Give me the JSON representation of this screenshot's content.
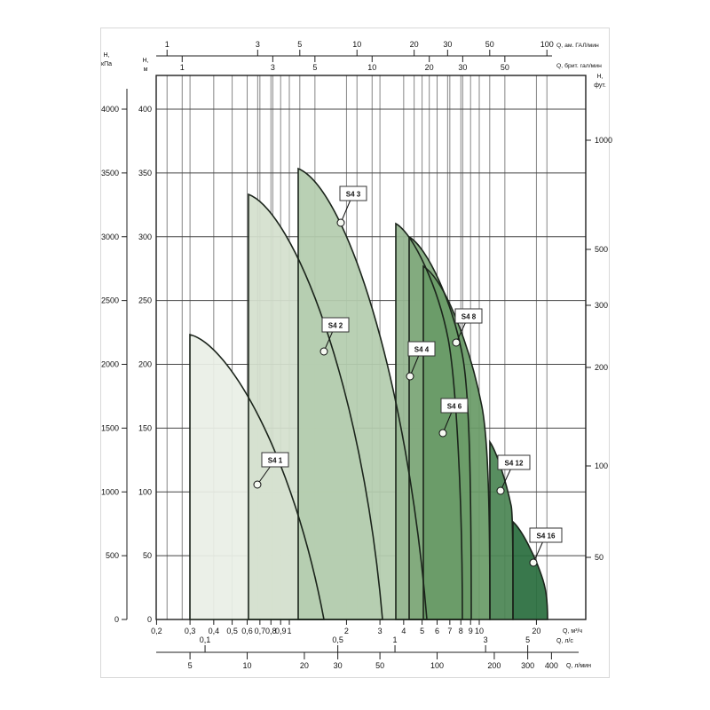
{
  "page": {
    "background": "#ffffff",
    "card_border": "#d8d8d8"
  },
  "chart_data": {
    "type": "area",
    "title": "",
    "legend_position": "inline-labels",
    "grid": true,
    "x_scale": "log",
    "y_scale": "linear",
    "axes": {
      "top_us_gpm": {
        "caption": "Q, ам. ГАЛ/мин",
        "labels": [
          "1",
          "3",
          "5",
          "10",
          "20",
          "30",
          "50",
          "100"
        ],
        "values": [
          1,
          3,
          5,
          10,
          20,
          30,
          50,
          100
        ]
      },
      "top_imp_gpm": {
        "caption": "Q, брит. гал/мин",
        "labels": [
          "1",
          "3",
          "5",
          "10",
          "20",
          "30",
          "50"
        ],
        "values": [
          1,
          3,
          5,
          10,
          20,
          30,
          50
        ]
      },
      "bottom_m3h": {
        "caption": "Q, м³/ч",
        "labels": [
          "0,2",
          "0,3",
          "0,4",
          "0,5",
          "0,6",
          "0,7",
          "0,8",
          "0,9",
          "1",
          "2",
          "3",
          "4",
          "5",
          "6",
          "7",
          "8",
          "9",
          "10",
          "20"
        ],
        "values": [
          0.2,
          0.3,
          0.4,
          0.5,
          0.6,
          0.7,
          0.8,
          0.9,
          1,
          2,
          3,
          4,
          5,
          6,
          7,
          8,
          9,
          10,
          20
        ]
      },
      "bottom_ls": {
        "caption": "Q, л/с",
        "labels": [
          "0,1",
          "0,5",
          "1",
          "3",
          "5"
        ],
        "values": [
          0.1,
          0.5,
          1,
          3,
          5
        ]
      },
      "bottom_lmin": {
        "caption": "Q, л/мин",
        "labels": [
          "5",
          "10",
          "20",
          "30",
          "50",
          "100",
          "200",
          "300",
          "400"
        ],
        "values": [
          5,
          10,
          20,
          30,
          50,
          100,
          200,
          300,
          400
        ]
      },
      "left_kpa": {
        "caption_line1": "H,",
        "caption_line2": "кПа",
        "labels": [
          "0",
          "500",
          "1000",
          "1500",
          "2000",
          "2500",
          "3000",
          "3500",
          "4000"
        ],
        "values": [
          0,
          500,
          1000,
          1500,
          2000,
          2500,
          3000,
          3500,
          4000
        ]
      },
      "left_m": {
        "caption_line1": "H,",
        "caption_line2": "м",
        "labels": [
          "0",
          "50",
          "100",
          "150",
          "200",
          "250",
          "300",
          "350",
          "400"
        ],
        "values": [
          0,
          50,
          100,
          150,
          200,
          250,
          300,
          350,
          400
        ]
      },
      "right_ft": {
        "caption_line1": "H,",
        "caption_line2": "фут.",
        "labels": [
          "1000",
          "500",
          "300",
          "200",
          "100",
          "50"
        ],
        "values": [
          1000,
          500,
          300,
          200,
          100,
          50
        ]
      }
    },
    "series": [
      {
        "name": "S4 1",
        "fill": "#e9efe6",
        "h_max_m": 224,
        "q_max_m3h": 1.5
      },
      {
        "name": "S4 2",
        "fill": "#d4e0ce",
        "h_max_m": 333,
        "q_max_m3h": 3.1
      },
      {
        "name": "S4 3",
        "fill": "#b4ccae",
        "h_max_m": 353,
        "q_max_m3h": 5.3
      },
      {
        "name": "S4 4",
        "fill": "#96b691",
        "h_max_m": 310,
        "q_max_m3h": 8.1
      },
      {
        "name": "S4 6",
        "fill": "#81aa7d",
        "h_max_m": 300,
        "q_max_m3h": 9.0
      },
      {
        "name": "S4 8",
        "fill": "#699b67",
        "h_max_m": 277,
        "q_max_m3h": 11.4
      },
      {
        "name": "S4 12",
        "fill": "#4b8554",
        "h_max_m": 140,
        "q_max_m3h": 15.0
      },
      {
        "name": "S4 16",
        "fill": "#2a6e3e",
        "h_max_m": 77,
        "q_max_m3h": 23.0
      }
    ],
    "colors": {
      "grid_v": "#868686",
      "grid_h": "#454545",
      "frame": "#1f1f1f",
      "envelope_stroke": "#1b241b",
      "tag_bg": "#ffffff",
      "tag_border": "#333333",
      "dot_fill": "#f6f9f2"
    }
  }
}
